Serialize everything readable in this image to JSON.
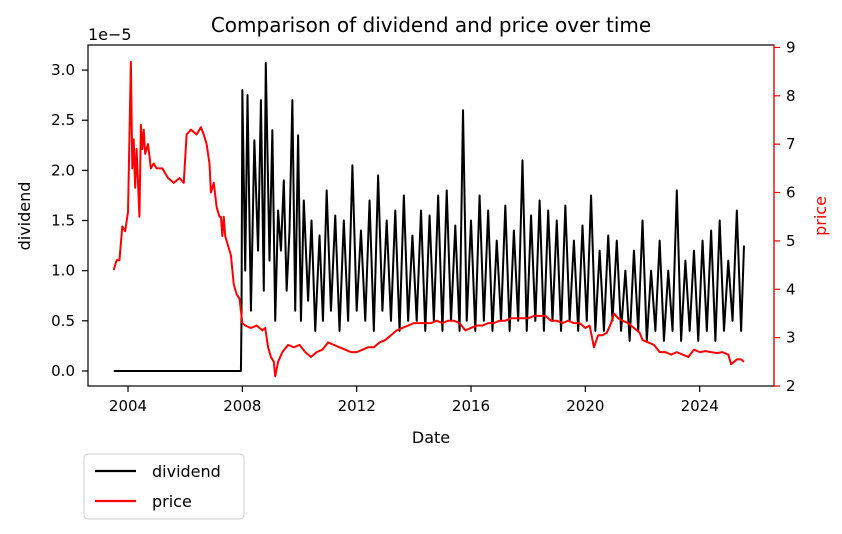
{
  "chart_data": {
    "type": "line",
    "title": "Comparison of dividend and price over time",
    "xlabel": "Date",
    "ylabel_left": "dividend",
    "ylabel_right": "price",
    "left_axis_offset": "1e−5",
    "xlim": [
      2002.6,
      2026.6
    ],
    "ylim_left": [
      -0.15,
      3.25
    ],
    "ylim_right": [
      2.0,
      9.05
    ],
    "x_ticks": [
      2004,
      2008,
      2012,
      2016,
      2020,
      2024
    ],
    "x_tick_labels": [
      "2004",
      "2008",
      "2012",
      "2016",
      "2020",
      "2024"
    ],
    "y_left_ticks": [
      0.0,
      0.5,
      1.0,
      1.5,
      2.0,
      2.5,
      3.0
    ],
    "y_left_tick_labels": [
      "0.0",
      "0.5",
      "1.0",
      "1.5",
      "2.0",
      "2.5",
      "3.0"
    ],
    "y_right_ticks": [
      2,
      3,
      4,
      5,
      6,
      7,
      8,
      9
    ],
    "y_right_tick_labels": [
      "2",
      "3",
      "4",
      "5",
      "6",
      "7",
      "8",
      "9"
    ],
    "legend_position": "below-left",
    "grid": false,
    "series": [
      {
        "name": "dividend",
        "axis": "left",
        "color": "#000000",
        "points": [
          [
            2003.5,
            0
          ],
          [
            2007.95,
            0
          ],
          [
            2007.97,
            0.5
          ],
          [
            2008.0,
            2.8
          ],
          [
            2008.1,
            1.0
          ],
          [
            2008.18,
            2.75
          ],
          [
            2008.3,
            0.6
          ],
          [
            2008.42,
            2.3
          ],
          [
            2008.55,
            1.2
          ],
          [
            2008.65,
            2.7
          ],
          [
            2008.75,
            0.8
          ],
          [
            2008.82,
            3.07
          ],
          [
            2008.95,
            1.1
          ],
          [
            2009.05,
            2.4
          ],
          [
            2009.15,
            0.5
          ],
          [
            2009.25,
            1.6
          ],
          [
            2009.35,
            1.2
          ],
          [
            2009.45,
            1.9
          ],
          [
            2009.55,
            0.8
          ],
          [
            2009.65,
            1.4
          ],
          [
            2009.75,
            2.7
          ],
          [
            2009.85,
            0.6
          ],
          [
            2009.95,
            2.35
          ],
          [
            2010.05,
            0.5
          ],
          [
            2010.15,
            1.7
          ],
          [
            2010.3,
            0.7
          ],
          [
            2010.42,
            1.5
          ],
          [
            2010.55,
            0.4
          ],
          [
            2010.7,
            1.35
          ],
          [
            2010.82,
            0.5
          ],
          [
            2010.95,
            1.8
          ],
          [
            2011.1,
            0.6
          ],
          [
            2011.25,
            1.55
          ],
          [
            2011.4,
            0.4
          ],
          [
            2011.55,
            1.5
          ],
          [
            2011.7,
            0.5
          ],
          [
            2011.85,
            2.05
          ],
          [
            2012.0,
            0.6
          ],
          [
            2012.15,
            1.4
          ],
          [
            2012.3,
            0.5
          ],
          [
            2012.45,
            1.7
          ],
          [
            2012.6,
            0.4
          ],
          [
            2012.75,
            1.95
          ],
          [
            2012.9,
            0.6
          ],
          [
            2013.05,
            1.5
          ],
          [
            2013.2,
            0.5
          ],
          [
            2013.35,
            1.6
          ],
          [
            2013.5,
            0.4
          ],
          [
            2013.65,
            1.75
          ],
          [
            2013.8,
            0.5
          ],
          [
            2013.95,
            1.35
          ],
          [
            2014.1,
            0.5
          ],
          [
            2014.25,
            1.6
          ],
          [
            2014.4,
            0.4
          ],
          [
            2014.55,
            1.55
          ],
          [
            2014.7,
            0.5
          ],
          [
            2014.85,
            1.75
          ],
          [
            2015.0,
            0.4
          ],
          [
            2015.15,
            1.8
          ],
          [
            2015.3,
            0.5
          ],
          [
            2015.45,
            1.45
          ],
          [
            2015.6,
            0.4
          ],
          [
            2015.72,
            2.6
          ],
          [
            2015.85,
            0.5
          ],
          [
            2016.0,
            1.5
          ],
          [
            2016.15,
            0.4
          ],
          [
            2016.3,
            1.75
          ],
          [
            2016.45,
            0.5
          ],
          [
            2016.6,
            1.6
          ],
          [
            2016.75,
            0.4
          ],
          [
            2016.9,
            1.3
          ],
          [
            2017.05,
            0.5
          ],
          [
            2017.2,
            1.65
          ],
          [
            2017.35,
            0.4
          ],
          [
            2017.5,
            1.4
          ],
          [
            2017.65,
            0.5
          ],
          [
            2017.8,
            2.1
          ],
          [
            2017.95,
            0.4
          ],
          [
            2018.1,
            1.55
          ],
          [
            2018.25,
            0.5
          ],
          [
            2018.4,
            1.7
          ],
          [
            2018.55,
            0.4
          ],
          [
            2018.7,
            1.6
          ],
          [
            2018.85,
            0.5
          ],
          [
            2019.0,
            1.5
          ],
          [
            2019.15,
            0.4
          ],
          [
            2019.3,
            1.65
          ],
          [
            2019.45,
            0.5
          ],
          [
            2019.6,
            1.3
          ],
          [
            2019.75,
            0.4
          ],
          [
            2019.9,
            1.45
          ],
          [
            2020.05,
            0.5
          ],
          [
            2020.2,
            1.75
          ],
          [
            2020.35,
            0.4
          ],
          [
            2020.5,
            1.2
          ],
          [
            2020.65,
            0.4
          ],
          [
            2020.8,
            1.35
          ],
          [
            2020.95,
            0.5
          ],
          [
            2021.1,
            1.3
          ],
          [
            2021.25,
            0.4
          ],
          [
            2021.4,
            1.0
          ],
          [
            2021.55,
            0.3
          ],
          [
            2021.7,
            1.2
          ],
          [
            2021.85,
            0.4
          ],
          [
            2022.0,
            1.5
          ],
          [
            2022.15,
            0.3
          ],
          [
            2022.3,
            1.0
          ],
          [
            2022.45,
            0.4
          ],
          [
            2022.6,
            1.3
          ],
          [
            2022.75,
            0.3
          ],
          [
            2022.9,
            1.0
          ],
          [
            2023.05,
            0.4
          ],
          [
            2023.2,
            1.8
          ],
          [
            2023.35,
            0.3
          ],
          [
            2023.5,
            1.1
          ],
          [
            2023.65,
            0.4
          ],
          [
            2023.8,
            1.2
          ],
          [
            2023.95,
            0.3
          ],
          [
            2024.1,
            1.3
          ],
          [
            2024.25,
            0.4
          ],
          [
            2024.4,
            1.4
          ],
          [
            2024.55,
            0.3
          ],
          [
            2024.7,
            1.5
          ],
          [
            2024.85,
            0.4
          ],
          [
            2025.0,
            1.1
          ],
          [
            2025.15,
            0.5
          ],
          [
            2025.3,
            1.6
          ],
          [
            2025.45,
            0.4
          ],
          [
            2025.55,
            1.25
          ]
        ]
      },
      {
        "name": "price",
        "axis": "right",
        "color": "#ff0000",
        "points": [
          [
            2003.5,
            4.4
          ],
          [
            2003.6,
            4.6
          ],
          [
            2003.7,
            4.6
          ],
          [
            2003.8,
            5.3
          ],
          [
            2003.9,
            5.2
          ],
          [
            2004.0,
            5.6
          ],
          [
            2004.1,
            8.7
          ],
          [
            2004.15,
            6.5
          ],
          [
            2004.2,
            7.1
          ],
          [
            2004.25,
            6.1
          ],
          [
            2004.3,
            6.9
          ],
          [
            2004.35,
            6.2
          ],
          [
            2004.4,
            5.5
          ],
          [
            2004.45,
            7.4
          ],
          [
            2004.5,
            6.9
          ],
          [
            2004.55,
            7.3
          ],
          [
            2004.6,
            6.8
          ],
          [
            2004.7,
            7.0
          ],
          [
            2004.8,
            6.5
          ],
          [
            2004.9,
            6.6
          ],
          [
            2005.0,
            6.5
          ],
          [
            2005.2,
            6.5
          ],
          [
            2005.4,
            6.3
          ],
          [
            2005.6,
            6.2
          ],
          [
            2005.8,
            6.3
          ],
          [
            2005.95,
            6.2
          ],
          [
            2006.05,
            7.2
          ],
          [
            2006.2,
            7.3
          ],
          [
            2006.4,
            7.2
          ],
          [
            2006.55,
            7.35
          ],
          [
            2006.65,
            7.2
          ],
          [
            2006.75,
            7.0
          ],
          [
            2006.85,
            6.6
          ],
          [
            2006.9,
            6.0
          ],
          [
            2007.0,
            6.2
          ],
          [
            2007.1,
            5.7
          ],
          [
            2007.2,
            5.5
          ],
          [
            2007.25,
            5.5
          ],
          [
            2007.3,
            5.1
          ],
          [
            2007.35,
            5.5
          ],
          [
            2007.4,
            5.1
          ],
          [
            2007.5,
            4.9
          ],
          [
            2007.6,
            4.7
          ],
          [
            2007.7,
            4.1
          ],
          [
            2007.8,
            3.9
          ],
          [
            2007.9,
            3.8
          ],
          [
            2008.0,
            3.3
          ],
          [
            2008.1,
            3.25
          ],
          [
            2008.3,
            3.2
          ],
          [
            2008.5,
            3.25
          ],
          [
            2008.7,
            3.15
          ],
          [
            2008.8,
            3.2
          ],
          [
            2008.9,
            2.8
          ],
          [
            2009.0,
            2.6
          ],
          [
            2009.1,
            2.5
          ],
          [
            2009.15,
            2.2
          ],
          [
            2009.25,
            2.5
          ],
          [
            2009.4,
            2.7
          ],
          [
            2009.6,
            2.85
          ],
          [
            2009.8,
            2.8
          ],
          [
            2010.0,
            2.85
          ],
          [
            2010.2,
            2.7
          ],
          [
            2010.4,
            2.6
          ],
          [
            2010.6,
            2.7
          ],
          [
            2010.8,
            2.75
          ],
          [
            2011.0,
            2.9
          ],
          [
            2011.2,
            2.85
          ],
          [
            2011.4,
            2.8
          ],
          [
            2011.6,
            2.75
          ],
          [
            2011.8,
            2.7
          ],
          [
            2012.0,
            2.7
          ],
          [
            2012.2,
            2.75
          ],
          [
            2012.4,
            2.8
          ],
          [
            2012.6,
            2.8
          ],
          [
            2012.8,
            2.9
          ],
          [
            2013.0,
            2.95
          ],
          [
            2013.2,
            3.05
          ],
          [
            2013.4,
            3.15
          ],
          [
            2013.6,
            3.2
          ],
          [
            2013.8,
            3.25
          ],
          [
            2014.0,
            3.3
          ],
          [
            2014.2,
            3.3
          ],
          [
            2014.4,
            3.3
          ],
          [
            2014.6,
            3.3
          ],
          [
            2014.8,
            3.35
          ],
          [
            2015.0,
            3.3
          ],
          [
            2015.2,
            3.35
          ],
          [
            2015.4,
            3.35
          ],
          [
            2015.6,
            3.3
          ],
          [
            2015.8,
            3.15
          ],
          [
            2016.0,
            3.2
          ],
          [
            2016.2,
            3.25
          ],
          [
            2016.4,
            3.25
          ],
          [
            2016.6,
            3.3
          ],
          [
            2016.8,
            3.3
          ],
          [
            2017.0,
            3.35
          ],
          [
            2017.2,
            3.35
          ],
          [
            2017.4,
            3.4
          ],
          [
            2017.6,
            3.4
          ],
          [
            2017.8,
            3.4
          ],
          [
            2018.0,
            3.4
          ],
          [
            2018.2,
            3.45
          ],
          [
            2018.4,
            3.45
          ],
          [
            2018.6,
            3.45
          ],
          [
            2018.8,
            3.35
          ],
          [
            2019.0,
            3.35
          ],
          [
            2019.2,
            3.3
          ],
          [
            2019.4,
            3.35
          ],
          [
            2019.6,
            3.3
          ],
          [
            2019.8,
            3.3
          ],
          [
            2020.0,
            3.2
          ],
          [
            2020.15,
            3.25
          ],
          [
            2020.3,
            2.8
          ],
          [
            2020.45,
            3.05
          ],
          [
            2020.6,
            3.05
          ],
          [
            2020.75,
            3.1
          ],
          [
            2020.9,
            3.3
          ],
          [
            2021.0,
            3.5
          ],
          [
            2021.15,
            3.4
          ],
          [
            2021.3,
            3.35
          ],
          [
            2021.5,
            3.3
          ],
          [
            2021.7,
            3.2
          ],
          [
            2021.9,
            3.1
          ],
          [
            2022.0,
            2.95
          ],
          [
            2022.2,
            2.9
          ],
          [
            2022.4,
            2.85
          ],
          [
            2022.6,
            2.7
          ],
          [
            2022.8,
            2.7
          ],
          [
            2023.0,
            2.65
          ],
          [
            2023.2,
            2.7
          ],
          [
            2023.4,
            2.65
          ],
          [
            2023.6,
            2.6
          ],
          [
            2023.8,
            2.75
          ],
          [
            2024.0,
            2.7
          ],
          [
            2024.2,
            2.72
          ],
          [
            2024.4,
            2.7
          ],
          [
            2024.6,
            2.68
          ],
          [
            2024.8,
            2.7
          ],
          [
            2025.0,
            2.65
          ],
          [
            2025.1,
            2.45
          ],
          [
            2025.2,
            2.5
          ],
          [
            2025.3,
            2.55
          ],
          [
            2025.45,
            2.55
          ],
          [
            2025.55,
            2.5
          ]
        ]
      }
    ]
  }
}
